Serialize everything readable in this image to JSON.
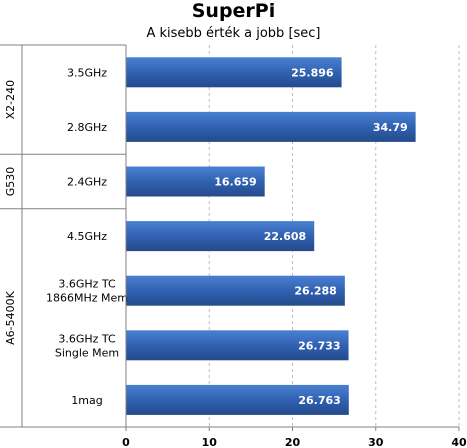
{
  "chart_data": {
    "type": "bar",
    "orientation": "horizontal",
    "title": "SuperPi",
    "subtitle": "A kisebb érték a jobb [sec]",
    "xlim": [
      0,
      40
    ],
    "xticks": [
      0,
      10,
      20,
      30,
      40
    ],
    "grid": "vertical-dashed",
    "groups": [
      {
        "name": "X2-240",
        "categories": [
          {
            "label": [
              "3.5GHz"
            ],
            "value": 25.896,
            "value_label": "25.896"
          },
          {
            "label": [
              "2.8GHz"
            ],
            "value": 34.79,
            "value_label": "34.79"
          }
        ]
      },
      {
        "name": "G530",
        "categories": [
          {
            "label": [
              "2.4GHz"
            ],
            "value": 16.659,
            "value_label": "16.659"
          }
        ]
      },
      {
        "name": "A6-5400K",
        "categories": [
          {
            "label": [
              "4.5GHz"
            ],
            "value": 22.608,
            "value_label": "22.608"
          },
          {
            "label": [
              "3.6GHz TC",
              "1866MHz Mem"
            ],
            "value": 26.288,
            "value_label": "26.288"
          },
          {
            "label": [
              "3.6GHz TC",
              "Single Mem"
            ],
            "value": 26.733,
            "value_label": "26.733"
          },
          {
            "label": [
              "1mag"
            ],
            "value": 26.763,
            "value_label": "26.763"
          }
        ]
      }
    ],
    "colors": {
      "bar": "#2f5fae",
      "bar_light": "#4a80d2",
      "grid": "#bfbfbf",
      "axis": "#808080"
    }
  }
}
